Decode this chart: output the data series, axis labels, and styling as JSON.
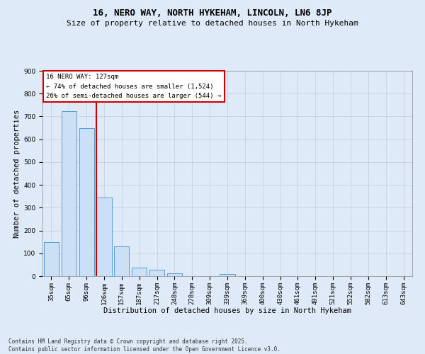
{
  "title": "16, NERO WAY, NORTH HYKEHAM, LINCOLN, LN6 8JP",
  "subtitle": "Size of property relative to detached houses in North Hykeham",
  "xlabel": "Distribution of detached houses by size in North Hykeham",
  "ylabel": "Number of detached properties",
  "categories": [
    "35sqm",
    "65sqm",
    "96sqm",
    "126sqm",
    "157sqm",
    "187sqm",
    "217sqm",
    "248sqm",
    "278sqm",
    "309sqm",
    "339sqm",
    "369sqm",
    "400sqm",
    "430sqm",
    "461sqm",
    "491sqm",
    "521sqm",
    "552sqm",
    "582sqm",
    "613sqm",
    "643sqm"
  ],
  "values": [
    150,
    722,
    650,
    344,
    131,
    38,
    28,
    11,
    0,
    0,
    8,
    0,
    0,
    0,
    0,
    0,
    0,
    0,
    0,
    0,
    0
  ],
  "bar_color": "#cce0f5",
  "bar_edge_color": "#5b9bd5",
  "vline_x_idx": 2.57,
  "vline_color": "#cc0000",
  "annotation_text": "16 NERO WAY: 127sqm\n← 74% of detached houses are smaller (1,524)\n26% of semi-detached houses are larger (544) →",
  "annotation_box_color": "#ffffff",
  "annotation_box_edge": "#cc0000",
  "ylim": [
    0,
    900
  ],
  "yticks": [
    0,
    100,
    200,
    300,
    400,
    500,
    600,
    700,
    800,
    900
  ],
  "footer": "Contains HM Land Registry data © Crown copyright and database right 2025.\nContains public sector information licensed under the Open Government Licence v3.0.",
  "background_color": "#deeaf7",
  "plot_bg_color": "#deeaf7",
  "title_fontsize": 9,
  "subtitle_fontsize": 8,
  "axis_label_fontsize": 7.5,
  "tick_fontsize": 6.5,
  "footer_fontsize": 5.5,
  "annotation_fontsize": 6.5
}
